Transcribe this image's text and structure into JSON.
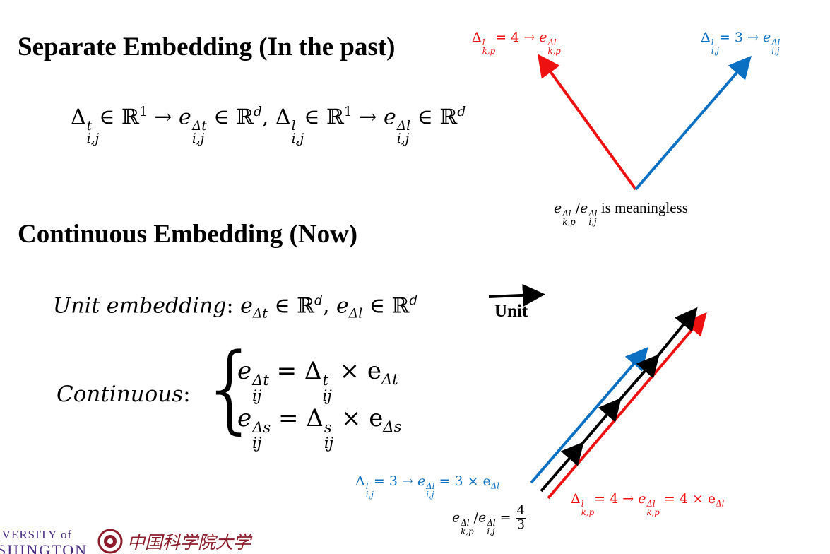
{
  "headings": {
    "separate": "Separate Embedding (In the past)",
    "continuous": "Continuous Embedding (Now)"
  },
  "separate_formula": {
    "delta": "Δ",
    "t": "t",
    "l": "l",
    "ij": "i,j",
    "in_r1": "∈ ℝ",
    "one": "1",
    "arrow": " → ",
    "e": "e",
    "dt": "Δt",
    "dl": "Δl",
    "in_rd": " ∈ ℝ",
    "d": "d",
    "comma": ", "
  },
  "unit_line": {
    "label": "Unit embedding",
    "colon": ": ",
    "e": "e",
    "sub_t": "Δt",
    "sub_l": "Δl",
    "in_rd": " ∈ ℝ",
    "d": "d",
    "comma": ", "
  },
  "unit_arrow_label": "Unit",
  "continuous": {
    "label": "Continuous",
    "colon": ":",
    "brace": "{",
    "row1": {
      "e": "e",
      "sup": "Δt",
      "sub": "ij",
      "eq": " = Δ",
      "dsup": "t",
      "dsub": "ij",
      "times": " × e",
      "esub": "Δt"
    },
    "row2": {
      "e": "e",
      "sup": "Δs",
      "sub": "ij",
      "eq": " = Δ",
      "dsup": "s",
      "dsub": "ij",
      "times": " × e",
      "esub": "Δs"
    }
  },
  "top_diagram": {
    "red_label": {
      "delta": "Δ",
      "sup": "l",
      "sub": "k,p",
      "rest": "= 4 → ",
      "e": "e",
      "esup": "Δl",
      "esub": "k,p"
    },
    "blue_label": {
      "delta": "Δ",
      "sup": "l",
      "sub": "i,j",
      "rest": "= 3 → ",
      "e": "e",
      "esup": "Δl",
      "esub": "i,j"
    },
    "bottom_label": {
      "e1": "e",
      "sup1": "Δl",
      "sub1": "k,p",
      "slash": "/",
      "e2": "e",
      "sup2": "Δl",
      "sub2": "i,j",
      "text": " is meaningless"
    }
  },
  "bottom_diagram": {
    "blue_label": {
      "delta": "Δ",
      "sup": "l",
      "sub": "i,j",
      "rest": "= 3 → ",
      "e": "e",
      "esup": "Δl",
      "esub": "i,j",
      "times": " = 3 × e",
      "tsub": "Δl"
    },
    "red_label": {
      "delta": "Δ",
      "sup": "l",
      "sub": "k,p",
      "rest": "= 4 → ",
      "e": "e",
      "esup": "Δl",
      "esub": "k,p",
      "times": " = 4 × e",
      "tsub": "Δl"
    },
    "ratio": {
      "e1": "e",
      "sup1": "Δl",
      "sub1": "k,p",
      "slash": "/",
      "e2": "e",
      "sup2": "Δl",
      "sub2": "i,j",
      "eq": " = ",
      "num": "4",
      "den": "3"
    }
  },
  "logos": {
    "uw_line1": "IVERSITY of",
    "uw_line2": "SHINGTON",
    "cas_text": "中国科学院大学"
  },
  "colors": {
    "red": "#ee1111",
    "blue": "#0b6fc2",
    "black": "#000000"
  }
}
